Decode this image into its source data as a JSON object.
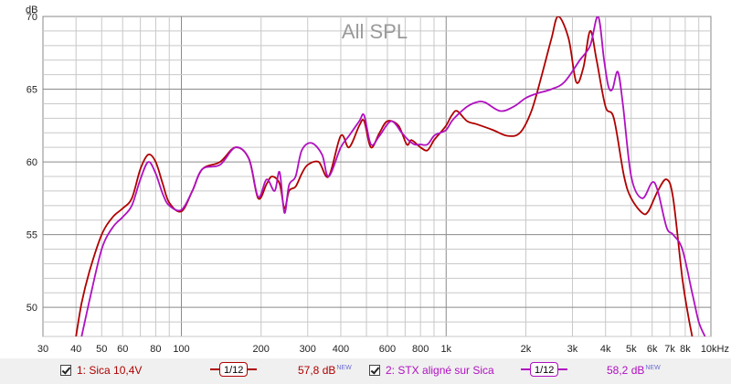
{
  "title": "All SPL",
  "y_unit": "dB",
  "colors": {
    "trace1": "#b00000",
    "trace2": "#b010c0",
    "grid": "#c8c8c8",
    "grid_major": "#8a8a8a"
  },
  "legend": [
    {
      "label": "1: Sica 10,4V",
      "smoothing": "1/12",
      "spl": "57,8 dB",
      "badge": "NEW",
      "color": "#b00000"
    },
    {
      "label": "2: STX aligné sur Sica",
      "smoothing": "1/12",
      "spl": "58,2 dB",
      "badge": "NEW",
      "color": "#b010c0"
    }
  ],
  "chart_data": {
    "type": "line",
    "title": "All SPL",
    "xlabel": "",
    "ylabel": "dB",
    "x_scale": "log",
    "xlim": [
      30,
      10000
    ],
    "ylim": [
      48,
      70
    ],
    "x_ticks": [
      30,
      40,
      50,
      60,
      80,
      100,
      200,
      300,
      400,
      600,
      800,
      1000,
      2000,
      3000,
      4000,
      5000,
      6000,
      7000,
      8000,
      10000
    ],
    "x_tick_labels": [
      "30",
      "40",
      "50",
      "60",
      "80",
      "100",
      "200",
      "300",
      "400",
      "600",
      "800",
      "1k",
      "2k",
      "3k",
      "4k",
      "5k",
      "6k",
      "7k",
      "8k",
      "10kHz"
    ],
    "y_ticks": [
      50,
      55,
      60,
      65,
      70
    ],
    "grid": true,
    "series": [
      {
        "name": "1: Sica 10,4V",
        "color": "#b00000",
        "points": [
          [
            40,
            48
          ],
          [
            42,
            50.3
          ],
          [
            45,
            52.5
          ],
          [
            50,
            55
          ],
          [
            55,
            56.2
          ],
          [
            60,
            56.8
          ],
          [
            65,
            57.5
          ],
          [
            70,
            59.5
          ],
          [
            75,
            60.5
          ],
          [
            80,
            60
          ],
          [
            85,
            58.5
          ],
          [
            90,
            57.2
          ],
          [
            100,
            56.6
          ],
          [
            110,
            58
          ],
          [
            120,
            59.5
          ],
          [
            140,
            60
          ],
          [
            160,
            61
          ],
          [
            180,
            60.2
          ],
          [
            195,
            57.5
          ],
          [
            210,
            58.5
          ],
          [
            220,
            59
          ],
          [
            235,
            58.5
          ],
          [
            245,
            56.8
          ],
          [
            255,
            58
          ],
          [
            270,
            58.3
          ],
          [
            285,
            59.2
          ],
          [
            300,
            59.8
          ],
          [
            330,
            60
          ],
          [
            360,
            59
          ],
          [
            400,
            61.8
          ],
          [
            430,
            61
          ],
          [
            470,
            62.5
          ],
          [
            490,
            62.8
          ],
          [
            520,
            61
          ],
          [
            560,
            62
          ],
          [
            600,
            62.8
          ],
          [
            660,
            62.5
          ],
          [
            710,
            61.2
          ],
          [
            740,
            61.5
          ],
          [
            800,
            61
          ],
          [
            850,
            60.8
          ],
          [
            900,
            61.5
          ],
          [
            950,
            62
          ],
          [
            1000,
            62.5
          ],
          [
            1050,
            63.2
          ],
          [
            1100,
            63.5
          ],
          [
            1200,
            62.8
          ],
          [
            1300,
            62.6
          ],
          [
            1500,
            62.2
          ],
          [
            1700,
            61.8
          ],
          [
            1900,
            62
          ],
          [
            2100,
            63.5
          ],
          [
            2300,
            66
          ],
          [
            2500,
            68.5
          ],
          [
            2650,
            70
          ],
          [
            2900,
            68.5
          ],
          [
            3100,
            65.5
          ],
          [
            3300,
            66.5
          ],
          [
            3500,
            69
          ],
          [
            3700,
            67
          ],
          [
            4000,
            63.8
          ],
          [
            4300,
            63
          ],
          [
            4700,
            59
          ],
          [
            5000,
            57.5
          ],
          [
            5500,
            56.5
          ],
          [
            5800,
            56.6
          ],
          [
            6300,
            58
          ],
          [
            6800,
            58.8
          ],
          [
            7200,
            57.5
          ],
          [
            7800,
            52
          ],
          [
            8200,
            49.5
          ],
          [
            8500,
            48
          ]
        ]
      },
      {
        "name": "2: STX aligné sur Sica",
        "color": "#b010c0",
        "points": [
          [
            42,
            48
          ],
          [
            45,
            50.5
          ],
          [
            50,
            54
          ],
          [
            55,
            55.5
          ],
          [
            60,
            56.2
          ],
          [
            65,
            57
          ],
          [
            70,
            58.8
          ],
          [
            75,
            60
          ],
          [
            80,
            59.2
          ],
          [
            85,
            57.8
          ],
          [
            90,
            57
          ],
          [
            100,
            56.7
          ],
          [
            110,
            58
          ],
          [
            120,
            59.5
          ],
          [
            140,
            59.8
          ],
          [
            160,
            61
          ],
          [
            180,
            60.2
          ],
          [
            195,
            57.6
          ],
          [
            210,
            58.8
          ],
          [
            225,
            58
          ],
          [
            235,
            59.3
          ],
          [
            245,
            56.5
          ],
          [
            255,
            58.4
          ],
          [
            270,
            59
          ],
          [
            285,
            60.8
          ],
          [
            310,
            61.3
          ],
          [
            340,
            60.5
          ],
          [
            360,
            59
          ],
          [
            400,
            61
          ],
          [
            430,
            61.8
          ],
          [
            470,
            62.8
          ],
          [
            490,
            63.2
          ],
          [
            520,
            61.2
          ],
          [
            560,
            61.8
          ],
          [
            620,
            62.8
          ],
          [
            680,
            62
          ],
          [
            720,
            61.5
          ],
          [
            760,
            61.2
          ],
          [
            800,
            61.2
          ],
          [
            850,
            61.2
          ],
          [
            900,
            61.8
          ],
          [
            950,
            62
          ],
          [
            1000,
            62.2
          ],
          [
            1050,
            62.8
          ],
          [
            1100,
            63.2
          ],
          [
            1200,
            63.8
          ],
          [
            1300,
            64.1
          ],
          [
            1400,
            64.1
          ],
          [
            1600,
            63.5
          ],
          [
            1800,
            63.8
          ],
          [
            2000,
            64.4
          ],
          [
            2200,
            64.7
          ],
          [
            2500,
            65
          ],
          [
            2800,
            65.5
          ],
          [
            3200,
            67
          ],
          [
            3500,
            68
          ],
          [
            3750,
            70
          ],
          [
            3950,
            67
          ],
          [
            4100,
            65.2
          ],
          [
            4250,
            65
          ],
          [
            4450,
            66.2
          ],
          [
            4650,
            64
          ],
          [
            5000,
            59
          ],
          [
            5500,
            57.5
          ],
          [
            6000,
            58.6
          ],
          [
            6300,
            58
          ],
          [
            6800,
            55.5
          ],
          [
            7200,
            55
          ],
          [
            7800,
            54
          ],
          [
            8500,
            51
          ],
          [
            9000,
            49
          ],
          [
            9500,
            48
          ]
        ]
      }
    ]
  }
}
